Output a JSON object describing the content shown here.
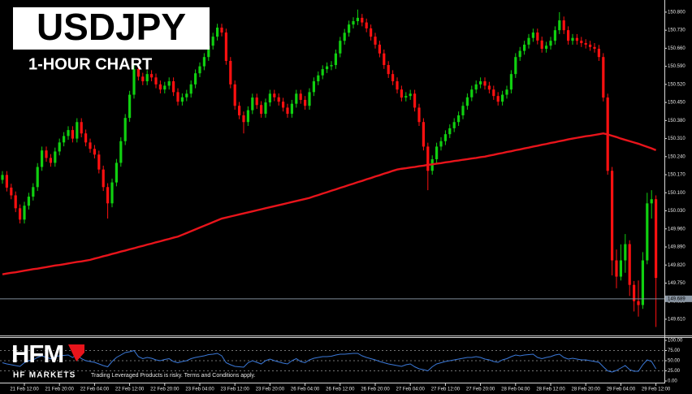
{
  "chart_data": [
    {
      "type": "candlestick",
      "title": "USDJPY",
      "subtitle": "1-HOUR CHART",
      "colors": {
        "up": "#10d010",
        "down": "#ff1010"
      },
      "ylim": [
        149.55,
        150.847
      ],
      "yticks": [
        {
          "value": 150.8,
          "label": "150.800"
        },
        {
          "value": 150.73,
          "label": "150.730"
        },
        {
          "value": 150.66,
          "label": "150.660"
        },
        {
          "value": 150.59,
          "label": "150.590"
        },
        {
          "value": 150.52,
          "label": "150.520"
        },
        {
          "value": 150.45,
          "label": "150.450"
        },
        {
          "value": 150.38,
          "label": "150.380"
        },
        {
          "value": 150.31,
          "label": "150.310"
        },
        {
          "value": 150.24,
          "label": "150.240"
        },
        {
          "value": 150.17,
          "label": "150.170"
        },
        {
          "value": 150.1,
          "label": "150.100"
        },
        {
          "value": 150.03,
          "label": "150.030"
        },
        {
          "value": 149.96,
          "label": "149.960"
        },
        {
          "value": 149.89,
          "label": "149.890"
        },
        {
          "value": 149.82,
          "label": "149.820"
        },
        {
          "value": 149.75,
          "label": "149.750"
        },
        {
          "value": 149.68,
          "label": "149.680"
        },
        {
          "value": 149.61,
          "label": "149.610"
        }
      ],
      "last_price": 149.689,
      "categories": [
        null,
        null,
        null,
        null,
        null,
        "21 Feb 12:00",
        null,
        null,
        null,
        null,
        null,
        null,
        null,
        "21 Feb 20:00",
        null,
        null,
        null,
        null,
        null,
        null,
        null,
        "22 Feb 04:00",
        null,
        null,
        null,
        null,
        null,
        null,
        null,
        "22 Feb 12:00",
        null,
        null,
        null,
        null,
        null,
        null,
        null,
        "22 Feb 20:00",
        null,
        null,
        null,
        null,
        null,
        null,
        null,
        "23 Feb 04:00",
        null,
        null,
        null,
        null,
        null,
        null,
        null,
        "23 Feb 12:00",
        null,
        null,
        null,
        null,
        null,
        null,
        null,
        "23 Feb 20:00",
        null,
        null,
        null,
        null,
        null,
        null,
        null,
        "26 Feb 04:00",
        null,
        null,
        null,
        null,
        null,
        null,
        null,
        "26 Feb 12:00",
        null,
        null,
        null,
        null,
        null,
        null,
        null,
        "26 Feb 20:00",
        null,
        null,
        null,
        null,
        null,
        null,
        null,
        "27 Feb 04:00",
        null,
        null,
        null,
        null,
        null,
        null,
        null,
        "27 Feb 12:00",
        null,
        null,
        null,
        null,
        null,
        null,
        null,
        "27 Feb 20:00",
        null,
        null,
        null,
        null,
        null,
        null,
        null,
        "28 Feb 04:00",
        null,
        null,
        null,
        null,
        null,
        null,
        null,
        "28 Feb 12:00",
        null,
        null,
        null,
        null,
        null,
        null,
        null,
        "28 Feb 20:00",
        null,
        null,
        null,
        null,
        null,
        null,
        null,
        "29 Feb 04:00",
        null,
        null,
        null,
        null,
        null,
        null,
        null,
        "29 Feb 12:00"
      ],
      "open": [
        150.15,
        150.169,
        150.12,
        150.09,
        150.04,
        149.996,
        150.05,
        150.085,
        150.122,
        150.2,
        150.264,
        150.235,
        150.216,
        150.26,
        150.295,
        150.32,
        150.343,
        150.31,
        150.374,
        150.33,
        150.295,
        150.27,
        150.248,
        150.19,
        150.122,
        150.059,
        150.14,
        150.216,
        150.3,
        150.39,
        150.48,
        150.579,
        150.55,
        150.532,
        150.56,
        150.547,
        150.52,
        150.5,
        150.515,
        150.532,
        150.49,
        150.453,
        150.47,
        150.484,
        150.52,
        150.563,
        150.59,
        150.626,
        150.67,
        150.705,
        150.74,
        150.721,
        150.611,
        150.52,
        150.437,
        150.4,
        150.374,
        150.42,
        150.469,
        150.44,
        150.406,
        150.45,
        150.484,
        150.47,
        150.453,
        150.43,
        150.406,
        150.445,
        150.484,
        150.46,
        150.437,
        150.49,
        150.532,
        150.555,
        150.579,
        150.59,
        150.595,
        150.64,
        150.689,
        150.72,
        150.752,
        150.765,
        150.778,
        150.76,
        150.737,
        150.705,
        150.674,
        150.64,
        150.595,
        150.56,
        150.532,
        150.5,
        150.469,
        150.475,
        150.484,
        150.43,
        150.374,
        150.279,
        150.185,
        150.23,
        150.279,
        150.3,
        150.327,
        150.35,
        150.374,
        150.4,
        150.437,
        150.47,
        150.5,
        150.52,
        150.532,
        150.515,
        150.5,
        150.475,
        150.453,
        150.48,
        150.5,
        150.56,
        150.626,
        150.65,
        150.674,
        150.7,
        150.721,
        150.69,
        150.658,
        150.67,
        150.689,
        150.73,
        150.768,
        150.73,
        150.689,
        150.7,
        150.689,
        150.68,
        150.674,
        150.665,
        150.658,
        150.626,
        150.469,
        150.185,
        149.838,
        149.775,
        149.838,
        149.901,
        149.743,
        149.68,
        149.665,
        149.838,
        150.059,
        150.075
      ],
      "high": [
        150.184,
        150.184,
        150.135,
        150.105,
        150.055,
        150.065,
        150.1,
        150.137,
        150.215,
        150.279,
        150.279,
        150.25,
        150.275,
        150.31,
        150.335,
        150.358,
        150.358,
        150.389,
        150.389,
        150.345,
        150.31,
        150.285,
        150.263,
        150.205,
        150.137,
        150.155,
        150.231,
        150.315,
        150.405,
        150.495,
        150.594,
        150.594,
        150.565,
        150.575,
        150.575,
        150.562,
        150.535,
        150.53,
        150.547,
        150.547,
        150.505,
        150.485,
        150.499,
        150.535,
        150.578,
        150.605,
        150.641,
        150.685,
        150.72,
        150.755,
        150.755,
        150.736,
        150.626,
        150.535,
        150.452,
        150.415,
        150.435,
        150.484,
        150.484,
        150.455,
        150.465,
        150.499,
        150.499,
        150.485,
        150.468,
        150.445,
        150.46,
        150.499,
        150.499,
        150.475,
        150.505,
        150.547,
        150.57,
        150.594,
        150.605,
        150.61,
        150.655,
        150.704,
        150.735,
        150.767,
        150.78,
        150.81,
        150.793,
        150.775,
        150.752,
        150.72,
        150.689,
        150.655,
        150.61,
        150.575,
        150.547,
        150.515,
        150.49,
        150.499,
        150.499,
        150.445,
        150.389,
        150.294,
        150.245,
        150.294,
        150.315,
        150.342,
        150.365,
        150.389,
        150.415,
        150.452,
        150.485,
        150.515,
        150.535,
        150.547,
        150.547,
        150.53,
        150.515,
        150.49,
        150.495,
        150.515,
        150.575,
        150.641,
        150.665,
        150.689,
        150.715,
        150.736,
        150.736,
        150.705,
        150.685,
        150.704,
        150.745,
        150.8,
        150.783,
        150.745,
        150.715,
        150.715,
        150.704,
        150.695,
        150.689,
        150.68,
        150.673,
        150.641,
        150.484,
        150.2,
        149.88,
        149.9,
        149.94,
        149.916,
        149.758,
        149.76,
        149.87,
        150.1,
        150.11,
        150.09
      ],
      "low": [
        150.135,
        150.105,
        150.075,
        150.025,
        149.981,
        149.981,
        150.035,
        150.07,
        150.107,
        150.185,
        150.22,
        150.201,
        150.201,
        150.245,
        150.28,
        150.305,
        150.295,
        150.295,
        150.315,
        150.28,
        150.255,
        150.233,
        150.175,
        150.107,
        150.0,
        150.044,
        150.125,
        150.201,
        150.285,
        150.375,
        150.465,
        150.535,
        150.517,
        150.517,
        150.532,
        150.505,
        150.485,
        150.485,
        150.5,
        150.475,
        150.438,
        150.438,
        150.455,
        150.469,
        150.505,
        150.548,
        150.575,
        150.611,
        150.655,
        150.69,
        150.706,
        150.596,
        150.505,
        150.422,
        150.385,
        150.33,
        150.359,
        150.405,
        150.425,
        150.391,
        150.391,
        150.435,
        150.455,
        150.438,
        150.415,
        150.391,
        150.391,
        150.43,
        150.445,
        150.422,
        150.422,
        150.475,
        150.517,
        150.54,
        150.564,
        150.575,
        150.58,
        150.625,
        150.674,
        150.705,
        150.737,
        150.75,
        150.745,
        150.722,
        150.69,
        150.659,
        150.625,
        150.58,
        150.545,
        150.517,
        150.485,
        150.454,
        150.454,
        150.46,
        150.415,
        150.359,
        150.264,
        150.11,
        150.17,
        150.215,
        150.264,
        150.285,
        150.312,
        150.335,
        150.359,
        150.385,
        150.422,
        150.455,
        150.485,
        150.505,
        150.5,
        150.485,
        150.46,
        150.438,
        150.438,
        150.465,
        150.485,
        150.545,
        150.611,
        150.635,
        150.659,
        150.685,
        150.675,
        150.643,
        150.643,
        150.655,
        150.674,
        150.715,
        150.715,
        150.674,
        150.674,
        150.674,
        150.665,
        150.659,
        150.65,
        150.643,
        150.611,
        150.454,
        150.17,
        149.78,
        149.73,
        149.76,
        149.79,
        149.7,
        149.64,
        149.62,
        149.65,
        149.823,
        150.0,
        149.58
      ],
      "close": [
        150.169,
        150.12,
        150.09,
        150.04,
        149.996,
        150.05,
        150.085,
        150.122,
        150.2,
        150.264,
        150.235,
        150.216,
        150.26,
        150.295,
        150.32,
        150.343,
        150.31,
        150.374,
        150.33,
        150.295,
        150.27,
        150.248,
        150.19,
        150.122,
        150.059,
        150.14,
        150.216,
        150.3,
        150.39,
        150.48,
        150.579,
        150.55,
        150.532,
        150.56,
        150.547,
        150.52,
        150.5,
        150.515,
        150.532,
        150.49,
        150.453,
        150.47,
        150.484,
        150.52,
        150.563,
        150.59,
        150.626,
        150.67,
        150.705,
        150.74,
        150.721,
        150.611,
        150.52,
        150.437,
        150.4,
        150.374,
        150.42,
        150.469,
        150.44,
        150.406,
        150.45,
        150.484,
        150.47,
        150.453,
        150.43,
        150.406,
        150.445,
        150.484,
        150.46,
        150.437,
        150.49,
        150.532,
        150.555,
        150.579,
        150.59,
        150.595,
        150.64,
        150.689,
        150.72,
        150.752,
        150.765,
        150.778,
        150.76,
        150.737,
        150.705,
        150.674,
        150.64,
        150.595,
        150.56,
        150.532,
        150.5,
        150.469,
        150.475,
        150.484,
        150.43,
        150.374,
        150.279,
        150.185,
        150.23,
        150.279,
        150.3,
        150.327,
        150.35,
        150.374,
        150.4,
        150.437,
        150.47,
        150.5,
        150.52,
        150.532,
        150.515,
        150.5,
        150.475,
        150.453,
        150.48,
        150.5,
        150.56,
        150.626,
        150.65,
        150.674,
        150.7,
        150.721,
        150.69,
        150.658,
        150.67,
        150.689,
        150.73,
        150.768,
        150.73,
        150.689,
        150.7,
        150.689,
        150.68,
        150.674,
        150.665,
        150.658,
        150.626,
        150.469,
        150.185,
        149.838,
        149.775,
        149.838,
        149.901,
        149.743,
        149.68,
        149.665,
        149.838,
        150.059,
        150.075,
        149.77
      ],
      "lines": [
        {
          "color": "#e8141b",
          "values": [
            149.784,
            149.787,
            149.79,
            149.792,
            149.795,
            149.798,
            149.801,
            149.804,
            149.806,
            149.809,
            149.812,
            149.815,
            149.818,
            149.82,
            149.823,
            149.826,
            149.829,
            149.832,
            149.834,
            149.837,
            149.84,
            149.845,
            149.849,
            149.854,
            149.858,
            149.863,
            149.867,
            149.872,
            149.876,
            149.881,
            149.885,
            149.89,
            149.894,
            149.899,
            149.903,
            149.908,
            149.912,
            149.917,
            149.921,
            149.926,
            149.93,
            149.937,
            149.944,
            149.951,
            149.958,
            149.965,
            149.972,
            149.979,
            149.986,
            149.993,
            150.0,
            150.004,
            150.008,
            150.012,
            150.016,
            150.02,
            150.024,
            150.028,
            150.032,
            150.036,
            150.04,
            150.044,
            150.048,
            150.052,
            150.056,
            150.06,
            150.064,
            150.068,
            150.072,
            150.076,
            150.08,
            150.086,
            150.091,
            150.097,
            150.102,
            150.108,
            150.113,
            150.119,
            150.124,
            150.13,
            150.135,
            150.141,
            150.146,
            150.152,
            150.157,
            150.163,
            150.168,
            150.174,
            150.179,
            150.185,
            150.19,
            150.193,
            150.195,
            150.198,
            150.2,
            150.203,
            150.205,
            150.208,
            150.21,
            150.213,
            150.215,
            150.218,
            150.22,
            150.223,
            150.225,
            150.228,
            150.23,
            150.233,
            150.235,
            150.238,
            150.24,
            150.244,
            150.247,
            150.251,
            150.254,
            150.258,
            150.261,
            150.265,
            150.268,
            150.272,
            150.275,
            150.279,
            150.282,
            150.286,
            150.289,
            150.293,
            150.296,
            150.3,
            150.303,
            150.307,
            150.31,
            150.313,
            150.316,
            150.319,
            150.321,
            150.324,
            150.327,
            150.33,
            150.326,
            150.321,
            150.316,
            150.31,
            150.305,
            150.3,
            150.295,
            150.29,
            150.284,
            150.278,
            150.272,
            150.265
          ]
        }
      ]
    },
    {
      "type": "line",
      "color": "#3a78d8",
      "ylim": [
        0,
        100
      ],
      "yticks": [
        {
          "value": 100,
          "label": "100.00"
        },
        {
          "value": 75,
          "label": "75.00"
        },
        {
          "value": 50,
          "label": "50.00"
        },
        {
          "value": 25,
          "label": "25.00"
        },
        {
          "value": 0,
          "label": "0.00"
        }
      ],
      "values": [
        45,
        42,
        40,
        38,
        36,
        45,
        50,
        52,
        58,
        62,
        58,
        55,
        60,
        62,
        63,
        64,
        58,
        65,
        55,
        50,
        48,
        46,
        42,
        38,
        35,
        48,
        58,
        64,
        70,
        72,
        75,
        60,
        55,
        58,
        56,
        52,
        50,
        53,
        55,
        48,
        45,
        48,
        50,
        55,
        58,
        60,
        62,
        65,
        66,
        68,
        62,
        45,
        40,
        36,
        35,
        34,
        45,
        50,
        46,
        42,
        50,
        54,
        50,
        47,
        44,
        42,
        50,
        55,
        48,
        45,
        52,
        56,
        58,
        60,
        60,
        61,
        64,
        66,
        66,
        67,
        68,
        68,
        62,
        58,
        55,
        52,
        48,
        45,
        42,
        40,
        38,
        36,
        40,
        42,
        35,
        30,
        28,
        25,
        35,
        42,
        45,
        48,
        50,
        52,
        54,
        56,
        58,
        58,
        60,
        58,
        54,
        52,
        48,
        46,
        52,
        55,
        60,
        64,
        62,
        64,
        65,
        66,
        58,
        55,
        58,
        60,
        64,
        66,
        58,
        54,
        56,
        54,
        52,
        52,
        50,
        48,
        46,
        35,
        25,
        22,
        26,
        32,
        38,
        28,
        24,
        24,
        40,
        52,
        48,
        30
      ]
    }
  ],
  "branding": {
    "logo": "HFM",
    "name": "HF MARKETS",
    "disclaimer": "Trading Leveraged Products is risky. Terms and Conditions apply."
  }
}
